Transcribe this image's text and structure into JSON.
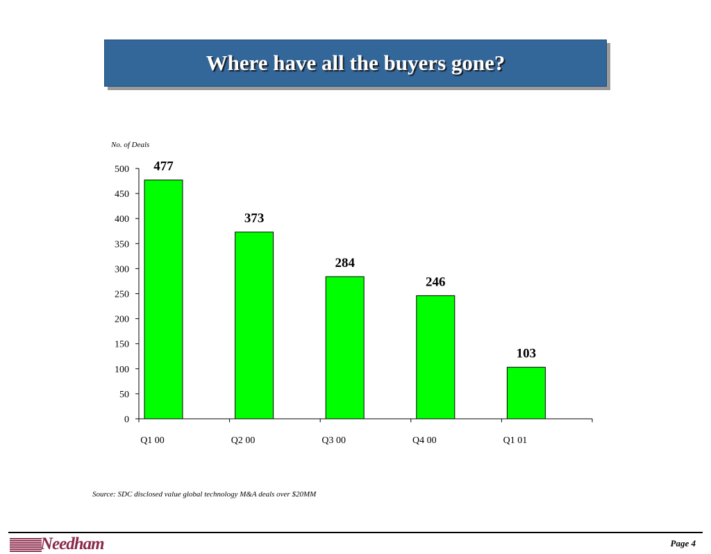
{
  "slide": {
    "title": "Where have all the buyers gone?",
    "source": "Source:  SDC disclosed value global technology M&A deals over $20MM",
    "logo_text": "Needham",
    "page": "Page 4"
  },
  "colors": {
    "bar": "#00ff00",
    "title_bg": "#336699",
    "logo": "#8a2a4a"
  },
  "chart_data": {
    "type": "bar",
    "title": "",
    "ylabel": "No. of Deals",
    "xlabel": "",
    "categories": [
      "Q1 00",
      "Q2 00",
      "Q3 00",
      "Q4 00",
      "Q1 01"
    ],
    "values": [
      477,
      373,
      284,
      246,
      103
    ],
    "data_labels": [
      "477",
      "373",
      "284",
      "246",
      "103"
    ],
    "ylim": [
      0,
      500
    ],
    "yticks": [
      0,
      50,
      100,
      150,
      200,
      250,
      300,
      350,
      400,
      450,
      500
    ],
    "grid": false,
    "legend": "none"
  }
}
